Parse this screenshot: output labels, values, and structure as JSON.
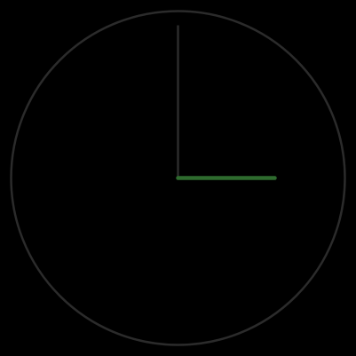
{
  "clock": {
    "time": "3:00",
    "hour": 3,
    "minute": 0,
    "colors": {
      "background": "#000000",
      "face_outline": "#2b2b2b",
      "minute_hand": "#2b2b2b",
      "hour_hand": "#2e6b2e"
    }
  }
}
